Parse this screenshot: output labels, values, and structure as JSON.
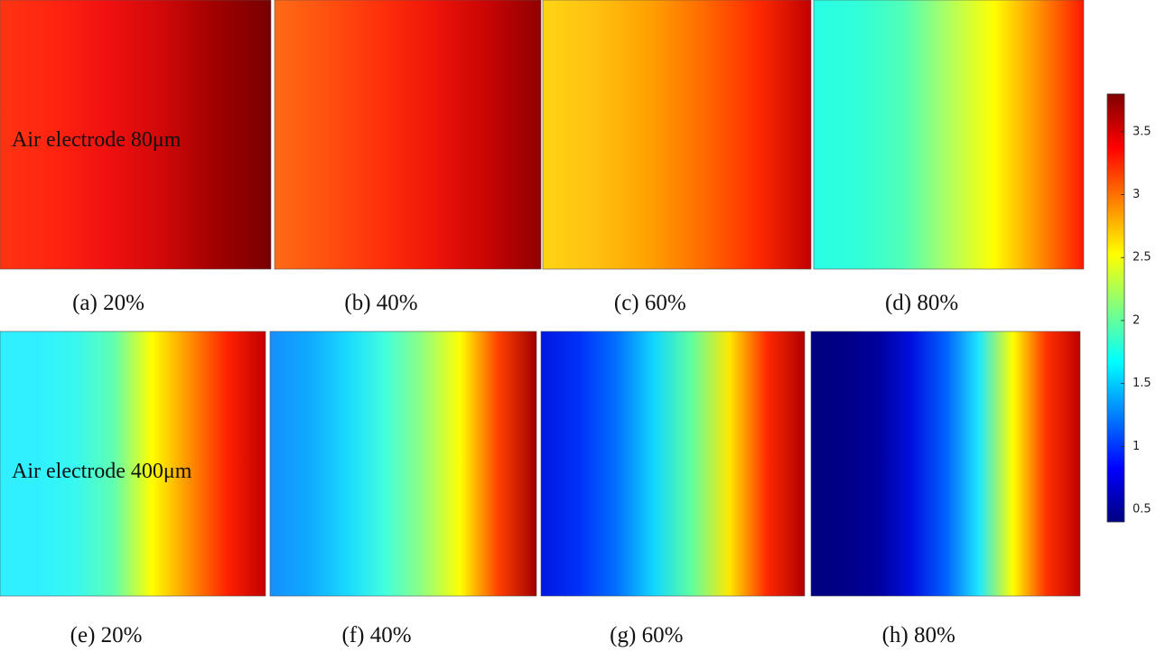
{
  "panels": [
    {
      "caption": "(a) 20%",
      "annotation": "Air electrode 80μm",
      "gradient": [
        "#ff3412",
        "#ff2410",
        "#f01010",
        "#d00808",
        "#a00000",
        "#780000"
      ]
    },
    {
      "caption": "(b) 40%",
      "gradient": [
        "#ff6a14",
        "#ff5010",
        "#ff300a",
        "#ee1408",
        "#c80404",
        "#900000"
      ]
    },
    {
      "caption": "(c) 60%",
      "gradient": [
        "#ffd414",
        "#ffc010",
        "#ffa000",
        "#ff6a00",
        "#ff2a00",
        "#c00000"
      ]
    },
    {
      "caption": "(d) 80%",
      "gradient": [
        "#28ffe8",
        "#30ffd8",
        "#50ffb8",
        "#b0ff60",
        "#ffff00",
        "#ff9000",
        "#ff1800"
      ]
    },
    {
      "caption": "(e) 20%",
      "annotation": "Air electrode 400μm",
      "gradient": [
        "#30f0ff",
        "#30f0ff",
        "#38f8f0",
        "#60ffb0",
        "#ffff00",
        "#ff9000",
        "#ff2000",
        "#c00000"
      ]
    },
    {
      "caption": "(f) 40%",
      "gradient": [
        "#1490ff",
        "#10a8ff",
        "#18d8ff",
        "#40ffe0",
        "#90ff80",
        "#ffff00",
        "#ff4000",
        "#a00000"
      ]
    },
    {
      "caption": "(g) 60%",
      "gradient": [
        "#0018e0",
        "#0030f8",
        "#0070ff",
        "#10d8ff",
        "#60ffa0",
        "#ffe800",
        "#ff2800",
        "#b00000"
      ]
    },
    {
      "caption": "(h) 80%",
      "gradient": [
        "#000080",
        "#000088",
        "#00009c",
        "#0010e0",
        "#0060ff",
        "#20e8ff",
        "#ffff00",
        "#ff3000",
        "#c00000"
      ]
    }
  ],
  "colorbar": {
    "lim": [
      0.4,
      3.8
    ],
    "ticks": [
      0.5,
      1,
      1.5,
      2,
      2.5,
      3,
      3.5
    ],
    "gradient": [
      "#000080",
      "#0000ff",
      "#0080ff",
      "#00ffff",
      "#80ff80",
      "#ffff00",
      "#ff8000",
      "#ff0000",
      "#800000"
    ]
  }
}
